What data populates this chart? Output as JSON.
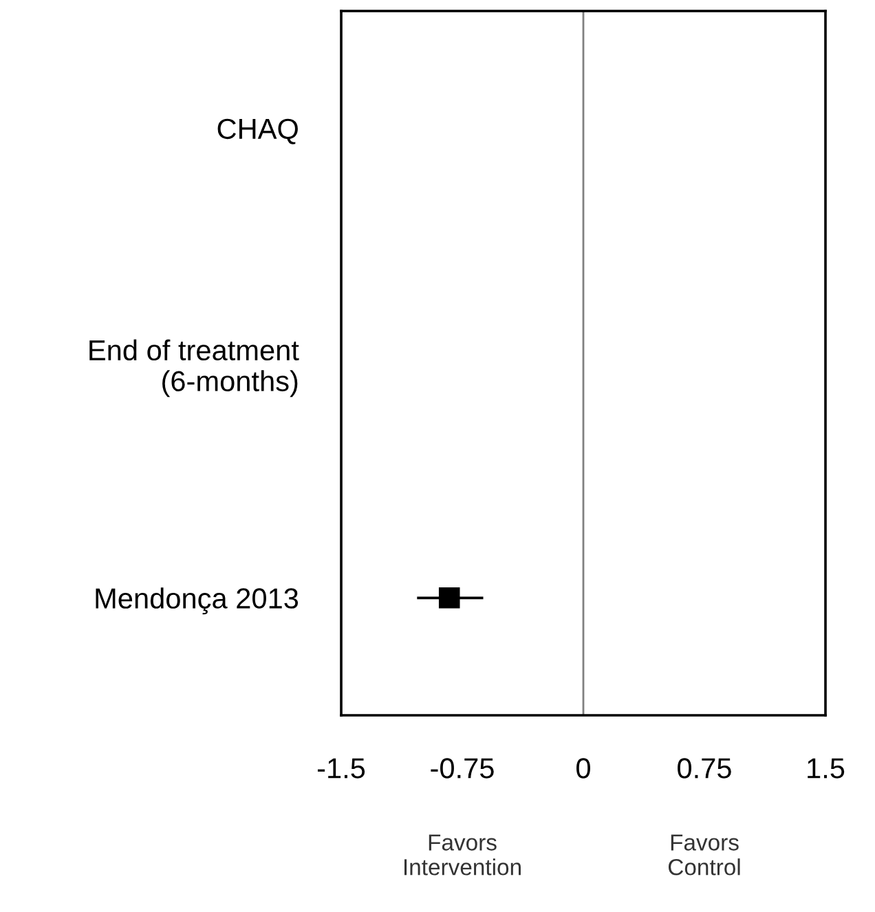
{
  "chart_data": {
    "type": "scatter",
    "orientation": "horizontal",
    "categories": [
      "CHAQ",
      "End of treatment\n(6-months)",
      "Mendonça 2013"
    ],
    "values": [
      null,
      null,
      -0.83
    ],
    "errors": [
      null,
      null,
      [
        -1.03,
        -0.62
      ]
    ],
    "color": "#000000",
    "marker": "square",
    "xlim": [
      -1.5,
      1.5
    ],
    "xticks": [
      -1.5,
      -0.75,
      0,
      0.75,
      1.5
    ],
    "ref_lines": [
      {
        "axis": "x",
        "value": 0,
        "color": "#808080"
      }
    ],
    "annotations": [
      "Favors\nIntervention",
      "Favors\nControl"
    ],
    "grid": false,
    "legend": false
  }
}
